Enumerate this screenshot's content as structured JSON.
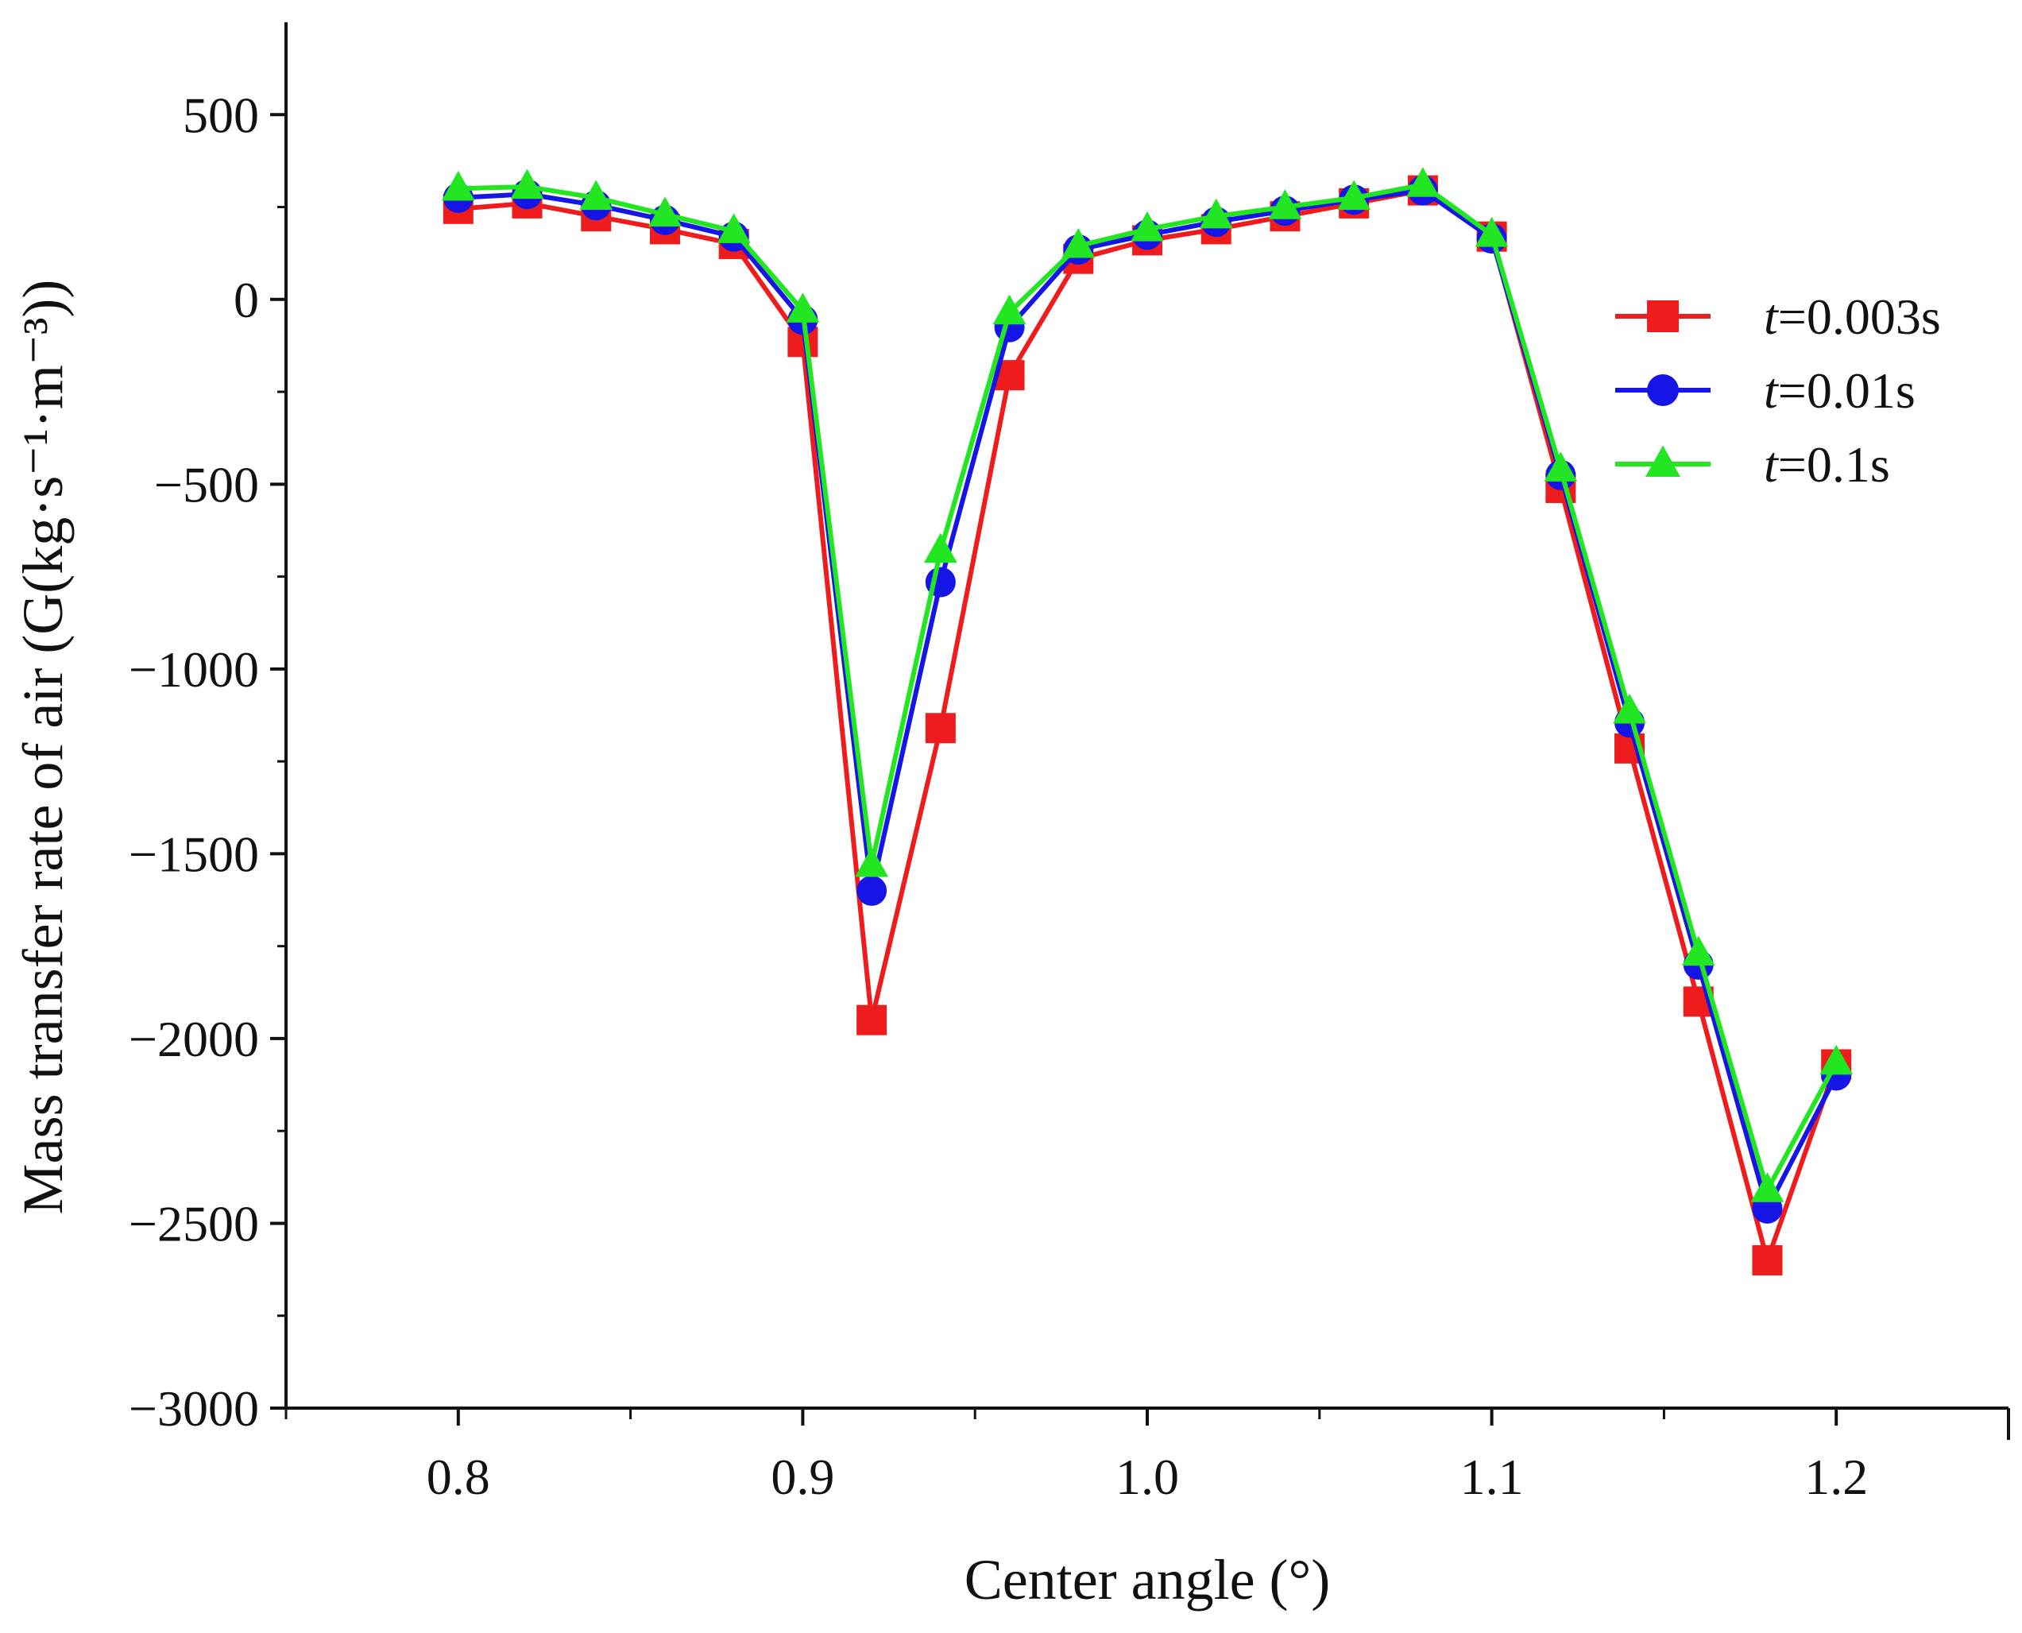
{
  "chart_data": {
    "type": "line",
    "title": "",
    "xlabel": "Center angle (°)",
    "ylabel": "Mass transfer rate of air (G(kg·s⁻¹·m⁻³))",
    "xlim": [
      0.75,
      1.25
    ],
    "ylim": [
      -3000,
      750
    ],
    "grid": false,
    "legend_position": "right",
    "x_ticks": [
      0.8,
      0.9,
      1.0,
      1.1,
      1.2
    ],
    "x_tick_labels": [
      "0.8",
      "0.9",
      "1.0",
      "1.1",
      "1.2"
    ],
    "y_ticks": [
      500,
      0,
      -500,
      -1000,
      -1500,
      -2000,
      -2500,
      -3000
    ],
    "y_tick_labels": [
      "500",
      "0",
      "−500",
      "−1000",
      "−1500",
      "−2000",
      "−2500",
      "−3000"
    ],
    "x": [
      0.8,
      0.82,
      0.84,
      0.86,
      0.88,
      0.9,
      0.92,
      0.94,
      0.96,
      0.98,
      1.0,
      1.02,
      1.04,
      1.06,
      1.08,
      1.1,
      1.12,
      1.14,
      1.16,
      1.18,
      1.2
    ],
    "series": [
      {
        "name": "t=0.003s",
        "legend_italic": "t",
        "legend_rest": "=0.003s",
        "color": "#ee1c1c",
        "marker": "square",
        "values": [
          245,
          260,
          225,
          190,
          150,
          -115,
          -1950,
          -1160,
          -205,
          110,
          160,
          190,
          225,
          260,
          295,
          170,
          -510,
          -1215,
          -1900,
          -2600,
          -2070
        ]
      },
      {
        "name": "t=0.01s",
        "legend_italic": "t",
        "legend_rest": "=0.01s",
        "color": "#1515e6",
        "marker": "circle",
        "values": [
          275,
          285,
          255,
          215,
          170,
          -55,
          -1600,
          -765,
          -75,
          135,
          175,
          210,
          240,
          270,
          295,
          165,
          -475,
          -1145,
          -1800,
          -2460,
          -2100
        ]
      },
      {
        "name": "t=0.1s",
        "legend_italic": "t",
        "legend_rest": "=0.1s",
        "color": "#22e622",
        "marker": "triangle",
        "values": [
          300,
          305,
          275,
          230,
          185,
          -30,
          -1530,
          -680,
          -35,
          145,
          190,
          225,
          250,
          275,
          310,
          175,
          -460,
          -1115,
          -1770,
          -2410,
          -2065
        ]
      }
    ]
  }
}
